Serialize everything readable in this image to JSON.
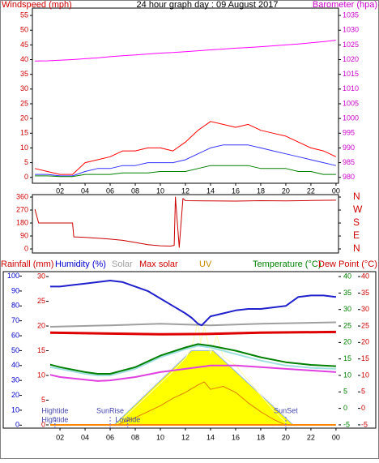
{
  "chart_data": [
    {
      "type": "line",
      "title": "24 hour graph day : 09 August 2017",
      "axis_labels": [
        {
          "text": "Windspeed (mph)",
          "color": "#cc0000"
        },
        {
          "text": "Barometer (hpa)",
          "color": "#cc00cc"
        }
      ],
      "x": [
        0,
        1,
        2,
        3,
        4,
        5,
        6,
        7,
        8,
        9,
        10,
        11,
        12,
        13,
        14,
        15,
        16,
        17,
        18,
        19,
        20,
        21,
        22,
        23,
        24
      ],
      "xlim": [
        -0.2,
        24.2
      ],
      "xticks": [
        {
          "value": 2,
          "label": "02"
        },
        {
          "value": 4,
          "label": "04"
        },
        {
          "value": 6,
          "label": "06"
        },
        {
          "value": 8,
          "label": "08"
        },
        10,
        12,
        14,
        16,
        18,
        20,
        22,
        {
          "value": 24,
          "label": "00"
        }
      ],
      "ylim": [
        -2,
        57.5
      ],
      "yticks": [
        0,
        5,
        10,
        15,
        20,
        25,
        30,
        35,
        40,
        45,
        50,
        55
      ],
      "y2lim": [
        978,
        1037.5
      ],
      "y2ticks": [
        980,
        985,
        990,
        995,
        1000,
        1005,
        1010,
        1015,
        1020,
        1025,
        1030,
        1035
      ],
      "series": [
        {
          "color": "#ff0000",
          "values": [
            3,
            2,
            1,
            1,
            5,
            6,
            7,
            9,
            9,
            10,
            10,
            9,
            12,
            16,
            19,
            18,
            17,
            18,
            16,
            15,
            14,
            12,
            10,
            9,
            7
          ]
        },
        {
          "color": "#3333ff",
          "values": [
            1,
            1,
            0.5,
            0.5,
            2,
            3,
            3,
            4,
            4,
            5,
            5,
            5,
            6,
            8,
            10,
            11,
            11,
            11,
            10,
            9,
            8,
            7,
            6,
            5,
            4
          ]
        },
        {
          "color": "#008000",
          "values": [
            0.5,
            0.5,
            0.3,
            0.3,
            1,
            1,
            1,
            1.5,
            1.5,
            1.5,
            2,
            2,
            2,
            3,
            4,
            4,
            4,
            4,
            3,
            3,
            3,
            2,
            2,
            1,
            1
          ]
        },
        {
          "color": "#ff00ff",
          "axis": "y2",
          "values": [
            1019.5,
            1019.6,
            1019.8,
            1020,
            1020.3,
            1020.6,
            1021,
            1021.3,
            1021.6,
            1021.9,
            1022.2,
            1022.4,
            1022.7,
            1023,
            1023.3,
            1023.6,
            1023.9,
            1024.1,
            1024.4,
            1024.7,
            1025,
            1025.3,
            1025.7,
            1026.1,
            1026.6
          ]
        }
      ]
    },
    {
      "type": "line",
      "x": [
        0,
        0.3,
        1,
        2,
        3,
        3.1,
        4,
        5,
        6,
        7,
        8,
        9,
        10,
        10.8,
        11.1,
        11.2,
        11.5,
        11.8,
        12,
        14,
        16,
        18,
        20,
        22,
        24
      ],
      "xlim": [
        -0.2,
        24.2
      ],
      "ylim": [
        -28,
        377
      ],
      "yticks": [
        0,
        90,
        180,
        270,
        360
      ],
      "y2lim": [
        -28,
        377
      ],
      "y2ticks": [
        {
          "value": 360,
          "label": "N"
        },
        {
          "value": 270,
          "label": "W"
        },
        {
          "value": 180,
          "label": "S"
        },
        {
          "value": 90,
          "label": "E"
        },
        {
          "value": 0,
          "label": "N"
        }
      ],
      "series": [
        {
          "color": "#cc0000",
          "values": [
            276,
            180,
            180,
            180,
            180,
            84,
            80,
            75,
            68,
            60,
            45,
            30,
            22,
            20,
            25,
            360,
            11,
            350,
            335,
            333,
            332,
            335,
            333,
            336,
            338
          ]
        }
      ]
    },
    {
      "type": "line",
      "axis_labels": [
        {
          "text": "Rainfall (mm)",
          "color": "#cc0000"
        },
        {
          "text": "Humidity (%)",
          "color": "#0000cc"
        },
        {
          "text": "Solar",
          "color": "#a0a0a0"
        },
        {
          "text": "Max solar",
          "color": "#cc0000"
        },
        {
          "text": "UV",
          "color": "#cc8800"
        },
        {
          "text": "Temperature (°C)",
          "color": "#008000"
        },
        {
          "text": "Dew Point (°C)",
          "color": "#cc0000"
        }
      ],
      "xlim": [
        -0.2,
        24.2
      ],
      "xticks": [
        {
          "value": 2,
          "label": "02"
        },
        {
          "value": 4,
          "label": "04"
        },
        {
          "value": 6,
          "label": "06"
        },
        {
          "value": 8,
          "label": "08"
        },
        10,
        12,
        14,
        16,
        18,
        20,
        22,
        {
          "value": 24,
          "label": "00"
        }
      ],
      "ylim": [
        -2,
        103
      ],
      "yticks": [
        0,
        10,
        20,
        30,
        40,
        50,
        60,
        70,
        80,
        90,
        100
      ],
      "y4lim": [
        -0.66,
        31
      ],
      "y4ticks": [
        0,
        5,
        10,
        15,
        20,
        25,
        30
      ],
      "y2lim": [
        -6,
        41.5
      ],
      "y2ticks": [
        -5,
        0,
        5,
        10,
        15,
        20,
        25,
        30,
        35,
        40
      ],
      "y3lim": [
        -6,
        41.5
      ],
      "y3ticks": [
        -5,
        0,
        5,
        10,
        15,
        20,
        25,
        30,
        35,
        40
      ],
      "series": [
        {
          "color": "#ffff00",
          "style": "area",
          "x": [
            6.3,
            12.5,
            14.2,
            20.6
          ],
          "values": [
            0,
            50,
            50,
            0
          ]
        },
        {
          "color": "#ffffb0",
          "x": [
            6.5,
            8,
            10,
            11,
            12,
            12.5,
            13,
            13.2,
            13.5,
            14,
            14.5,
            15,
            16,
            17,
            18,
            19,
            20
          ],
          "values": [
            0,
            12,
            28,
            36,
            45,
            52,
            70,
            55,
            66,
            48,
            60,
            46,
            40,
            30,
            20,
            10,
            2
          ]
        },
        {
          "color": "#e08000",
          "x": [
            6.5,
            8,
            10,
            11,
            12,
            13,
            13.5,
            14,
            15,
            16,
            17,
            18,
            19,
            20
          ],
          "values": [
            0,
            5,
            13,
            18,
            22,
            27,
            29,
            24,
            26,
            22,
            15,
            9,
            4,
            0
          ]
        },
        {
          "color": "#ff8800",
          "axis": "y4",
          "width": 2,
          "x": [
            1.2,
            24
          ],
          "values": [
            0,
            0
          ]
        },
        {
          "color": "#a0a0a0",
          "width": 2,
          "x": [
            1.2,
            6,
            10,
            14,
            18,
            24
          ],
          "values": [
            66,
            67,
            68,
            67,
            68,
            69
          ]
        },
        {
          "color": "#dd0000",
          "axis": "y3",
          "width": 3,
          "x": [
            1.2,
            6,
            10,
            14,
            18,
            24
          ],
          "values": [
            23,
            22.7,
            22.5,
            22.6,
            23,
            23.2
          ]
        },
        {
          "color": "#a0e0e0",
          "axis": "y2",
          "width": 2,
          "x": [
            1.2,
            2,
            4,
            5,
            6,
            8,
            10,
            12,
            13,
            14,
            16,
            18,
            20,
            22,
            24
          ],
          "values": [
            12.5,
            12,
            10.5,
            10,
            10,
            12,
            15.5,
            18,
            19,
            18.5,
            16.5,
            14.5,
            13,
            12.3,
            12
          ]
        },
        {
          "color": "#008000",
          "axis": "y2",
          "width": 2,
          "x": [
            1.2,
            2,
            4,
            5,
            6,
            8,
            10,
            12,
            13,
            14,
            16,
            18,
            20,
            22,
            24
          ],
          "values": [
            13.3,
            12.5,
            11,
            10.5,
            10.5,
            12.5,
            16,
            18.5,
            19.5,
            19,
            17.5,
            15.5,
            14,
            13.2,
            12.8
          ]
        },
        {
          "color": "#e040e0",
          "axis": "y3",
          "width": 2,
          "x": [
            1.2,
            2,
            4,
            5,
            6,
            8,
            10,
            12,
            14,
            16,
            18,
            20,
            22,
            24
          ],
          "values": [
            10.2,
            9.5,
            8.7,
            8.3,
            8.5,
            9.5,
            11,
            12,
            13,
            13,
            12.5,
            12,
            11.5,
            11
          ]
        },
        {
          "color": "#2020cc",
          "width": 2,
          "x": [
            1.2,
            2,
            3,
            4,
            5,
            6,
            7,
            8,
            9,
            10,
            11,
            12,
            12.5,
            13,
            13.3,
            14,
            15,
            16,
            17,
            18,
            19,
            20,
            21,
            22,
            23,
            24
          ],
          "values": [
            93,
            93,
            94,
            95,
            96,
            97,
            96,
            93,
            90,
            85,
            80,
            75,
            72,
            68,
            67,
            73,
            75,
            77,
            78,
            78,
            79,
            80,
            86,
            87,
            87,
            86
          ]
        }
      ],
      "annotations": [
        {
          "text": "Hightide",
          "x": 1.6
        },
        {
          "text": "SunRise",
          "x": 6.0
        },
        {
          "text": "Lowtide",
          "x": 7.4
        },
        {
          "text": "SunSet",
          "x": 20.0
        },
        {
          "text": "Hightide",
          "x": 1.6
        }
      ]
    }
  ]
}
